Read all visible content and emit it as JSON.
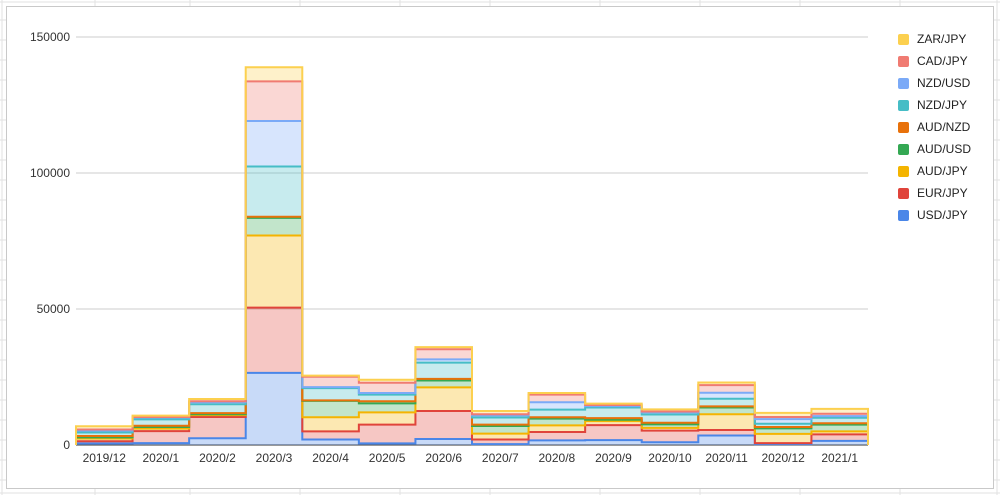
{
  "chart_data": {
    "type": "area",
    "stacked": true,
    "step": true,
    "categories": [
      "2019/12",
      "2020/1",
      "2020/2",
      "2020/3",
      "2020/4",
      "2020/5",
      "2020/6",
      "2020/7",
      "2020/8",
      "2020/9",
      "2020/10",
      "2020/11",
      "2020/12",
      "2021/1"
    ],
    "ylim": [
      0,
      150000
    ],
    "yticks": [
      "0",
      "50000",
      "100000",
      "150000"
    ],
    "ytick_values": [
      0,
      50000,
      100000,
      150000
    ],
    "grid": true,
    "legend_position": "right",
    "series": [
      {
        "name": "USD/JPY",
        "color": "#4a86e8",
        "values": [
          600,
          700,
          2500,
          26500,
          2000,
          600,
          2200,
          300,
          1700,
          1800,
          1000,
          3500,
          300,
          1500
        ]
      },
      {
        "name": "EUR/JPY",
        "color": "#e0443b",
        "values": [
          800,
          4400,
          7800,
          24000,
          3000,
          6900,
          10300,
          1700,
          3100,
          5500,
          4300,
          2000,
          400,
          2400
        ]
      },
      {
        "name": "AUD/JPY",
        "color": "#f4b400",
        "values": [
          1000,
          900,
          700,
          26500,
          5200,
          4500,
          8700,
          2200,
          2400,
          1500,
          1000,
          5800,
          3400,
          1100
        ]
      },
      {
        "name": "AUD/USD",
        "color": "#34a853",
        "values": [
          400,
          600,
          300,
          6500,
          6000,
          3300,
          2500,
          2800,
          2500,
          500,
          1300,
          2500,
          2000,
          2500
        ]
      },
      {
        "name": "AUD/NZD",
        "color": "#e8710a",
        "values": [
          500,
          500,
          400,
          400,
          200,
          800,
          600,
          500,
          500,
          600,
          600,
          400,
          500,
          500
        ]
      },
      {
        "name": "NZD/JPY",
        "color": "#46bdc6",
        "values": [
          1300,
          2300,
          3300,
          18500,
          4500,
          2400,
          6000,
          2600,
          2800,
          3900,
          3000,
          2800,
          1200,
          2000
        ]
      },
      {
        "name": "NZD/USD",
        "color": "#7baaf7",
        "values": [
          700,
          700,
          700,
          16700,
          400,
          600,
          1200,
          800,
          2700,
          500,
          800,
          2200,
          1700,
          600
        ]
      },
      {
        "name": "CAD/JPY",
        "color": "#f07b72",
        "values": [
          400,
          200,
          400,
          14600,
          3800,
          3800,
          3700,
          400,
          2800,
          400,
          300,
          2800,
          800,
          900
        ]
      },
      {
        "name": "ZAR/JPY",
        "color": "#fcd04f",
        "values": [
          1200,
          500,
          800,
          5200,
          400,
          1100,
          800,
          1200,
          600,
          500,
          800,
          1000,
          1500,
          1800
        ]
      }
    ]
  }
}
